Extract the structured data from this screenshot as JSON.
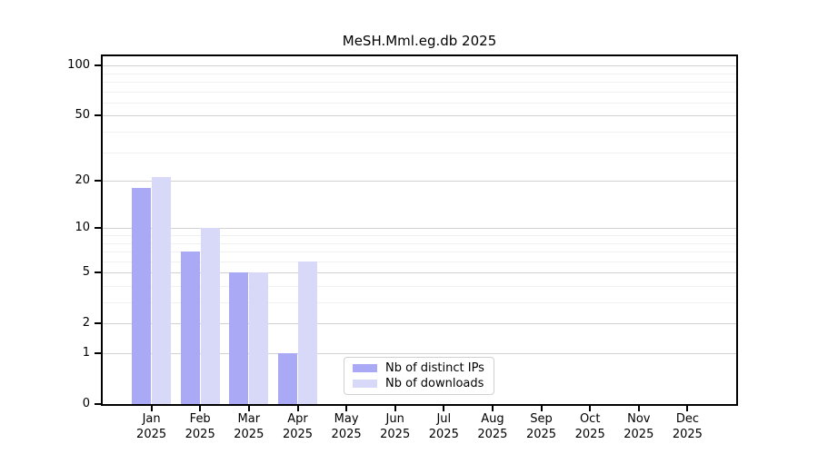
{
  "chart_data": {
    "type": "bar",
    "title": "MeSH.Mml.eg.db 2025",
    "categories": [
      "Jan",
      "Feb",
      "Mar",
      "Apr",
      "May",
      "Jun",
      "Jul",
      "Aug",
      "Sep",
      "Oct",
      "Nov",
      "Dec"
    ],
    "year_label": "2025",
    "series": [
      {
        "name": "Nb of distinct IPs",
        "color": "#a9a9f6",
        "values": [
          18,
          7,
          5,
          1,
          0,
          0,
          0,
          0,
          0,
          0,
          0,
          0
        ]
      },
      {
        "name": "Nb of downloads",
        "color": "#d8d8f9",
        "values": [
          21,
          10,
          5,
          6,
          0,
          0,
          0,
          0,
          0,
          0,
          0,
          0
        ]
      }
    ],
    "xlabel": "",
    "ylabel": "",
    "y_scale": "log10(value+1)",
    "y_ticks": [
      100,
      50,
      20,
      10,
      5,
      2,
      1,
      0
    ],
    "minor_gridlines": [
      3,
      4,
      6,
      7,
      8,
      9,
      30,
      40,
      60,
      70,
      80,
      90
    ],
    "ylim": [
      0,
      114
    ],
    "grid": "horizontal",
    "legend_position": "inside lower center"
  }
}
